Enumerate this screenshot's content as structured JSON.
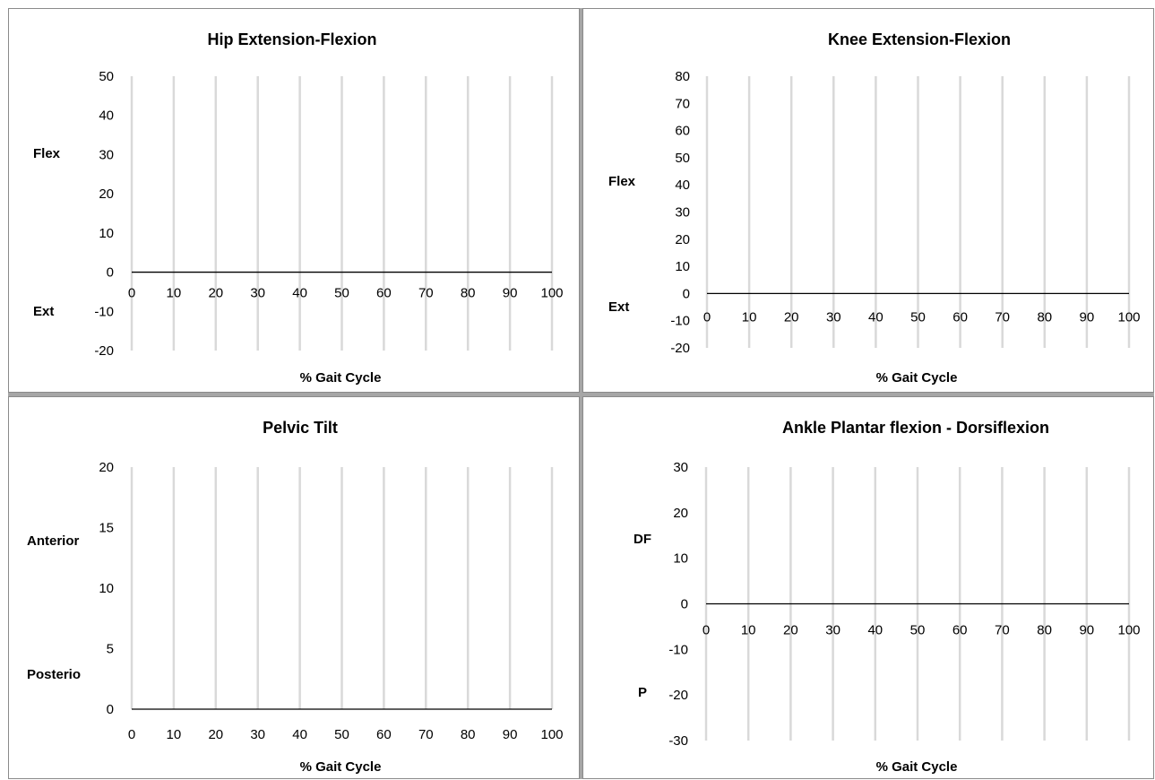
{
  "chart_data": [
    {
      "type": "line",
      "title": "Hip Extension-Flexion",
      "xlabel": "% Gait Cycle",
      "ylabel": "",
      "side_labels": [
        "Flex",
        "Ext"
      ],
      "x_ticks": [
        "0",
        "10",
        "20",
        "30",
        "40",
        "50",
        "60",
        "70",
        "80",
        "90",
        "100"
      ],
      "y_ticks": [
        "50",
        "40",
        "30",
        "20",
        "10",
        "0",
        "-10",
        "-20"
      ],
      "xlim": [
        0,
        100
      ],
      "ylim": [
        -20,
        50
      ],
      "y_step": 10,
      "gridlines": "vertical",
      "series": [
        {
          "x": [
            0,
            100
          ],
          "values": [
            0,
            0
          ]
        }
      ]
    },
    {
      "type": "line",
      "title": "Knee Extension-Flexion",
      "xlabel": "% Gait Cycle",
      "ylabel": "",
      "side_labels": [
        "Flex",
        "Ext"
      ],
      "x_ticks": [
        "0",
        "10",
        "20",
        "30",
        "40",
        "50",
        "60",
        "70",
        "80",
        "90",
        "100"
      ],
      "y_ticks": [
        "80",
        "70",
        "60",
        "50",
        "40",
        "30",
        "20",
        "10",
        "0",
        "-10",
        "-20"
      ],
      "xlim": [
        0,
        100
      ],
      "ylim": [
        -20,
        80
      ],
      "y_step": 10,
      "gridlines": "vertical",
      "series": [
        {
          "x": [
            0,
            100
          ],
          "values": [
            0,
            0
          ]
        }
      ]
    },
    {
      "type": "line",
      "title": "Pelvic Tilt",
      "xlabel": "% Gait Cycle",
      "ylabel": "",
      "side_labels": [
        "Anterior",
        "Posterio"
      ],
      "x_ticks": [
        "0",
        "10",
        "20",
        "30",
        "40",
        "50",
        "60",
        "70",
        "80",
        "90",
        "100"
      ],
      "y_ticks": [
        "20",
        "15",
        "10",
        "5",
        "0"
      ],
      "xlim": [
        0,
        100
      ],
      "ylim": [
        0,
        20
      ],
      "y_step": 5,
      "gridlines": "vertical",
      "series": [
        {
          "x": [
            0,
            100
          ],
          "values": [
            0,
            0
          ]
        }
      ]
    },
    {
      "type": "line",
      "title": "Ankle Plantar flexion - Dorsiflexion",
      "xlabel": "% Gait Cycle",
      "ylabel": "",
      "side_labels": [
        "DF",
        "P"
      ],
      "x_ticks": [
        "0",
        "10",
        "20",
        "30",
        "40",
        "50",
        "60",
        "70",
        "80",
        "90",
        "100"
      ],
      "y_ticks": [
        "30",
        "20",
        "10",
        "0",
        "-10",
        "-20",
        "-30"
      ],
      "xlim": [
        0,
        100
      ],
      "ylim": [
        -30,
        30
      ],
      "y_step": 10,
      "gridlines": "vertical",
      "series": [
        {
          "x": [
            0,
            100
          ],
          "values": [
            0,
            0
          ]
        }
      ]
    }
  ],
  "colors": {
    "gridline": "#d9d9d9",
    "axis_line": "#000000",
    "panel_border": "#8a8a8a"
  }
}
